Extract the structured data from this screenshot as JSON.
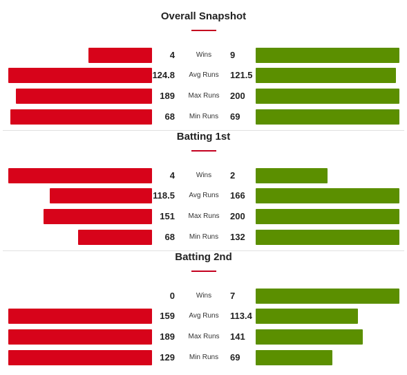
{
  "chart_data": [
    {
      "type": "bar",
      "title": "Overall Snapshot",
      "categories": [
        "Wins",
        "Avg Runs",
        "Max Runs",
        "Min Runs"
      ],
      "series": [
        {
          "values": [
            4,
            124.8,
            189,
            68
          ],
          "color": "#d7031a"
        },
        {
          "values": [
            9,
            121.5,
            200,
            69
          ],
          "color": "#5b8f00"
        }
      ],
      "left_labels": [
        "4",
        "124.8",
        "189",
        "68"
      ],
      "right_labels": [
        "9",
        "121.5",
        "200",
        "69"
      ]
    },
    {
      "type": "bar",
      "title": "Batting 1st",
      "categories": [
        "Wins",
        "Avg Runs",
        "Max Runs",
        "Min Runs"
      ],
      "series": [
        {
          "values": [
            4,
            118.5,
            151,
            68
          ],
          "color": "#d7031a"
        },
        {
          "values": [
            2,
            166,
            200,
            132
          ],
          "color": "#5b8f00"
        }
      ],
      "left_labels": [
        "4",
        "118.5",
        "151",
        "68"
      ],
      "right_labels": [
        "2",
        "166",
        "200",
        "132"
      ]
    },
    {
      "type": "bar",
      "title": "Batting 2nd",
      "categories": [
        "Wins",
        "Avg Runs",
        "Max Runs",
        "Min Runs"
      ],
      "series": [
        {
          "values": [
            0,
            159,
            189,
            129
          ],
          "color": "#d7031a"
        },
        {
          "values": [
            7,
            113.4,
            141,
            69
          ],
          "color": "#5b8f00"
        }
      ],
      "left_labels": [
        "0",
        "159",
        "189",
        "129"
      ],
      "right_labels": [
        "7",
        "113.4",
        "141",
        "69"
      ]
    }
  ]
}
